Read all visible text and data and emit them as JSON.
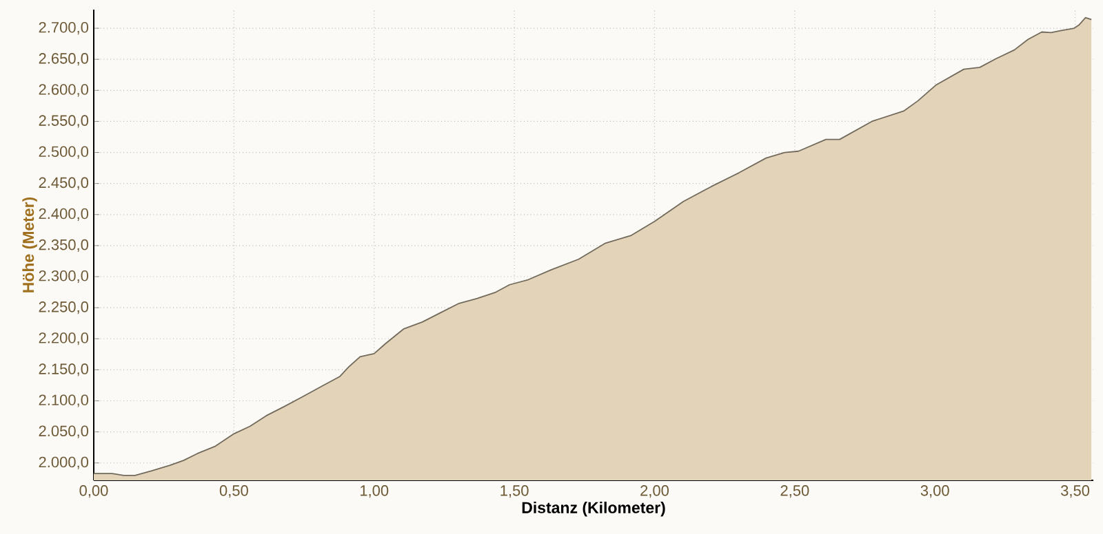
{
  "chart_data": {
    "type": "area",
    "xlabel": "Distanz (Kilometer)",
    "ylabel": "Höhe (Meter)",
    "x": [
      0,
      0.066,
      0.107,
      0.147,
      0.205,
      0.27,
      0.32,
      0.369,
      0.434,
      0.5,
      0.557,
      0.615,
      0.68,
      0.746,
      0.811,
      0.877,
      0.91,
      0.95,
      1.0,
      1.04,
      1.106,
      1.172,
      1.237,
      1.303,
      1.368,
      1.434,
      1.483,
      1.549,
      1.631,
      1.729,
      1.825,
      1.915,
      2.0,
      2.103,
      2.202,
      2.3,
      2.398,
      2.464,
      2.513,
      2.611,
      2.66,
      2.775,
      2.89,
      2.939,
      3.005,
      3.103,
      3.16,
      3.218,
      3.283,
      3.332,
      3.381,
      3.414,
      3.447,
      3.496,
      3.513,
      3.537,
      3.558
    ],
    "series": [
      {
        "color": "#e3d3b8",
        "values": [
          1983,
          1983,
          1980,
          1980,
          1987,
          1996,
          2004,
          2015,
          2027,
          2047,
          2059,
          2076,
          2091,
          2107,
          2123,
          2139,
          2155,
          2171,
          2176,
          2192,
          2216,
          2227,
          2242,
          2257,
          2265,
          2275,
          2287,
          2295,
          2311,
          2328,
          2354,
          2366,
          2389,
          2421,
          2445,
          2467,
          2491,
          2500,
          2502,
          2521,
          2521,
          2550,
          2567,
          2583,
          2609,
          2634,
          2637,
          2651,
          2665,
          2682,
          2694,
          2693,
          2696,
          2700,
          2705,
          2717,
          2714
        ]
      }
    ],
    "xlim": [
      0,
      3.565
    ],
    "ylim": [
      1972,
      2730
    ],
    "xticks": [
      {
        "value": 0,
        "label": "0,00"
      },
      {
        "value": 0.5,
        "label": "0,50"
      },
      {
        "value": 1,
        "label": "1,00"
      },
      {
        "value": 1.5,
        "label": "1,50"
      },
      {
        "value": 2,
        "label": "2,00"
      },
      {
        "value": 2.5,
        "label": "2,50"
      },
      {
        "value": 3,
        "label": "3,00"
      },
      {
        "value": 3.5,
        "label": "3,50"
      }
    ],
    "yticks": [
      {
        "value": 2000,
        "label": "2.000,0"
      },
      {
        "value": 2050,
        "label": "2.050,0"
      },
      {
        "value": 2100,
        "label": "2.100,0"
      },
      {
        "value": 2150,
        "label": "2.150,0"
      },
      {
        "value": 2200,
        "label": "2.200,0"
      },
      {
        "value": 2250,
        "label": "2.250,0"
      },
      {
        "value": 2300,
        "label": "2.300,0"
      },
      {
        "value": 2350,
        "label": "2.350,0"
      },
      {
        "value": 2400,
        "label": "2.400,0"
      },
      {
        "value": 2450,
        "label": "2.450,0"
      },
      {
        "value": 2500,
        "label": "2.500,0"
      },
      {
        "value": 2550,
        "label": "2.550,0"
      },
      {
        "value": 2600,
        "label": "2.600,0"
      },
      {
        "value": 2650,
        "label": "2.650,0"
      },
      {
        "value": 2700,
        "label": "2.700,0"
      }
    ],
    "grid": true
  }
}
